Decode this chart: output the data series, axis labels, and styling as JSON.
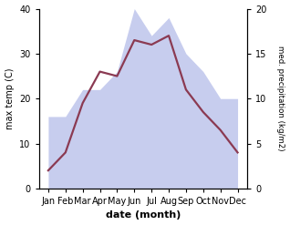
{
  "months": [
    "Jan",
    "Feb",
    "Mar",
    "Apr",
    "May",
    "Jun",
    "Jul",
    "Aug",
    "Sep",
    "Oct",
    "Nov",
    "Dec"
  ],
  "x": [
    0,
    1,
    2,
    3,
    4,
    5,
    6,
    7,
    8,
    9,
    10,
    11
  ],
  "temperature": [
    4,
    8,
    19,
    26,
    25,
    33,
    32,
    34,
    22,
    17,
    13,
    8
  ],
  "precipitation": [
    8,
    8,
    11,
    11,
    13,
    20,
    17,
    19,
    15,
    13,
    10,
    10
  ],
  "temp_color": "#8B3A52",
  "precip_color": "#b0b8e8",
  "ylim_left": [
    0,
    40
  ],
  "ylim_right": [
    0,
    20
  ],
  "yticks_left": [
    0,
    10,
    20,
    30,
    40
  ],
  "yticks_right": [
    0,
    5,
    10,
    15,
    20
  ],
  "ylabel_left": "max temp (C)",
  "ylabel_right": "med. precipitation (kg/m2)",
  "xlabel": "date (month)",
  "line_width": 1.6,
  "background_color": "#ffffff"
}
